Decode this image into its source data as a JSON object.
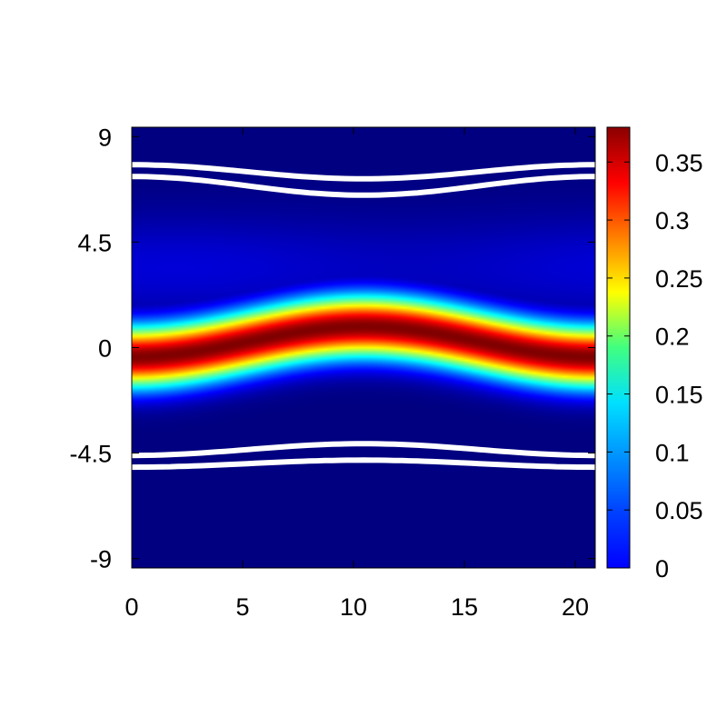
{
  "chart_data": {
    "type": "heatmap",
    "title": "",
    "xlabel": "",
    "ylabel": "",
    "xlim": [
      0,
      20.9
    ],
    "ylim": [
      -9.4,
      9.4
    ],
    "x_ticks": [
      0,
      5,
      10,
      15,
      20
    ],
    "x_tick_labels": [
      "0",
      "5",
      "10",
      "15",
      "20"
    ],
    "y_ticks": [
      9,
      4.5,
      0,
      -4.5,
      -9
    ],
    "y_tick_labels": [
      "9",
      "4.5",
      "0",
      "-4.5",
      "-9"
    ],
    "colorbar": {
      "range": [
        0,
        0.38
      ],
      "ticks": [
        0,
        0.05,
        0.1,
        0.15,
        0.2,
        0.25,
        0.3,
        0.35
      ],
      "tick_labels": [
        "0",
        "0.05",
        "0.1",
        "0.15",
        "0.2",
        "0.25",
        "0.3",
        "0.35"
      ],
      "colormap": "jet"
    },
    "field": {
      "description_values": "peak value along the central band",
      "peak": 0.38,
      "band_center_y": {
        "at_x_0": -0.4,
        "at_x_12": 0.9,
        "at_x_20.9": -0.4
      },
      "band_halfwidth": 1.3,
      "vortex_centers": [
        [
          2,
          3.6
        ],
        [
          20.9,
          3.6
        ]
      ],
      "vortex_value": 0.03,
      "background_value": 0.0
    },
    "white_contours": [
      {
        "y_at_x_0": 7.8,
        "y_at_x_12": 7.2
      },
      {
        "y_at_x_0": 7.3,
        "y_at_x_12": 6.5
      },
      {
        "y_at_x_0": -4.6,
        "y_at_x_12": -4.1
      },
      {
        "y_at_x_0": -5.1,
        "y_at_x_12": -4.8
      }
    ],
    "grid": false
  }
}
